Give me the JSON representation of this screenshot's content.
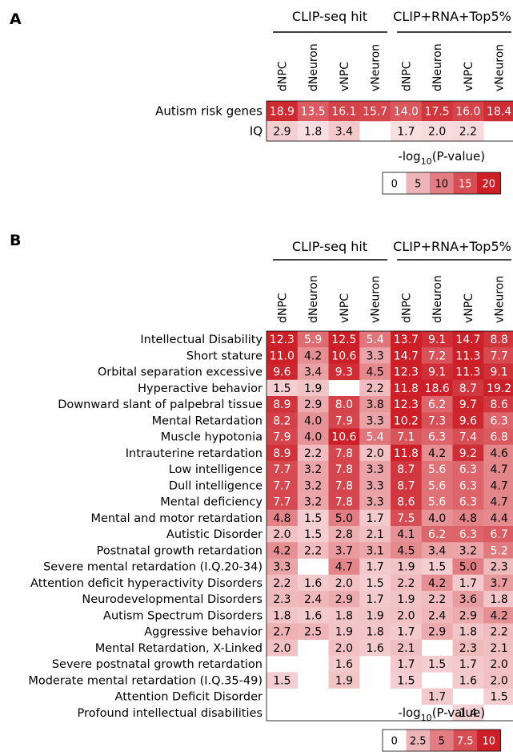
{
  "panel_a": {
    "letter": "A",
    "group_labels": [
      "CLIP-seq hit",
      "CLIP+RNA+Top5%"
    ],
    "columns": [
      "dNPC",
      "dNeuron",
      "vNPC",
      "vNeuron",
      "dNPC",
      "dNeuron",
      "vNPC",
      "vNeuron"
    ],
    "legend_title": "-log10(P-value)",
    "legend_ticks": [
      "0",
      "5",
      "10",
      "15",
      "20"
    ],
    "legend_max": 20
  },
  "panel_b": {
    "letter": "B",
    "group_labels": [
      "CLIP-seq hit",
      "CLIP+RNA+Top5%"
    ],
    "columns": [
      "dNPC",
      "dNeuron",
      "vNPC",
      "vNeuron",
      "dNPC",
      "dNeuron",
      "vNPC",
      "vNeuron"
    ],
    "legend_title": "-log10(P-value)",
    "legend_ticks": [
      "0",
      "2.5",
      "5",
      "7.5",
      "10"
    ],
    "legend_max": 10
  },
  "colors": {
    "low": "#ffffff",
    "high": "#cc1f27",
    "text_light": "#ffffff",
    "text_dark": "#000000"
  },
  "chart_data": [
    {
      "type": "heatmap",
      "rows": [
        "Autism risk genes",
        "IQ"
      ],
      "columns": [
        "dNPC",
        "dNeuron",
        "vNPC",
        "vNeuron",
        "dNPC",
        "dNeuron",
        "vNPC",
        "vNeuron"
      ],
      "column_groups": [
        {
          "name": "CLIP-seq hit",
          "columns": [
            0,
            1,
            2,
            3
          ]
        },
        {
          "name": "CLIP+RNA+Top5%",
          "columns": [
            4,
            5,
            6,
            7
          ]
        }
      ],
      "values": [
        [
          18.9,
          13.5,
          16.1,
          15.7,
          14.0,
          17.5,
          16.0,
          18.4
        ],
        [
          2.9,
          1.8,
          3.4,
          null,
          1.7,
          2.0,
          2.2,
          null
        ]
      ],
      "color_scale": {
        "min": 0,
        "max": 20,
        "title": "-log10(P-value)"
      }
    },
    {
      "type": "heatmap",
      "rows": [
        "Intellectual Disability",
        "Short stature",
        "Orbital separation excessive",
        "Hyperactive behavior",
        "Downward slant of palpebral tissue",
        "Mental Retardation",
        "Muscle hypotonia",
        "Intrauterine retardation",
        "Low intelligence",
        "Dull intelligence",
        "Mental deficiency",
        "Mental and motor retardation",
        "Autistic Disorder",
        "Postnatal growth retardation",
        "Severe mental retardation (I.Q.20-34)",
        "Attention deficit hyperactivity Disorders",
        "Neurodevelopmental Disorders",
        "Autism Spectrum Disorders",
        "Aggressive behavior",
        "Mental Retardation, X-Linked",
        "Severe postnatal growth retardation",
        "Moderate mental retardation (I.Q.35-49)",
        "Attention Deficit Disorder",
        "Profound intellectual disabilities"
      ],
      "columns": [
        "dNPC",
        "dNeuron",
        "vNPC",
        "vNeuron",
        "dNPC",
        "dNeuron",
        "vNPC",
        "vNeuron"
      ],
      "column_groups": [
        {
          "name": "CLIP-seq hit",
          "columns": [
            0,
            1,
            2,
            3
          ]
        },
        {
          "name": "CLIP+RNA+Top5%",
          "columns": [
            4,
            5,
            6,
            7
          ]
        }
      ],
      "values": [
        [
          12.3,
          5.9,
          12.5,
          5.4,
          13.7,
          9.1,
          14.7,
          8.8
        ],
        [
          11.0,
          4.2,
          10.6,
          3.3,
          14.7,
          7.2,
          11.3,
          7.7
        ],
        [
          9.6,
          3.4,
          9.3,
          4.5,
          12.3,
          9.1,
          11.3,
          9.1
        ],
        [
          1.5,
          1.9,
          null,
          2.2,
          11.8,
          18.6,
          8.7,
          19.2
        ],
        [
          8.9,
          2.9,
          8.0,
          3.8,
          12.3,
          6.2,
          9.7,
          8.6
        ],
        [
          8.2,
          4.0,
          7.9,
          3.3,
          10.2,
          7.3,
          9.6,
          6.3
        ],
        [
          7.9,
          4.0,
          10.6,
          5.4,
          7.1,
          6.3,
          7.4,
          6.8
        ],
        [
          8.9,
          2.2,
          7.8,
          2.0,
          11.8,
          4.2,
          9.2,
          4.6
        ],
        [
          7.7,
          3.2,
          7.8,
          3.3,
          8.7,
          5.6,
          6.3,
          4.7
        ],
        [
          7.7,
          3.2,
          7.8,
          3.3,
          8.7,
          5.6,
          6.3,
          4.7
        ],
        [
          7.7,
          3.2,
          7.8,
          3.3,
          8.6,
          5.6,
          6.3,
          4.7
        ],
        [
          4.8,
          1.5,
          5.0,
          1.7,
          7.5,
          4.0,
          4.8,
          4.4
        ],
        [
          2.0,
          1.5,
          2.8,
          2.1,
          4.1,
          6.2,
          6.3,
          6.7
        ],
        [
          4.2,
          2.2,
          3.7,
          3.1,
          4.5,
          3.4,
          3.2,
          5.2
        ],
        [
          3.3,
          null,
          4.7,
          1.7,
          1.9,
          1.5,
          5.0,
          2.3
        ],
        [
          2.2,
          1.6,
          2.0,
          1.5,
          2.2,
          4.2,
          1.7,
          3.7
        ],
        [
          2.3,
          2.4,
          2.9,
          1.7,
          1.9,
          2.2,
          3.6,
          1.8
        ],
        [
          1.8,
          1.6,
          1.8,
          1.9,
          2.0,
          2.4,
          2.9,
          4.2
        ],
        [
          2.7,
          2.5,
          1.9,
          1.8,
          1.7,
          2.9,
          1.8,
          2.2
        ],
        [
          2.0,
          null,
          2.0,
          1.6,
          2.1,
          null,
          2.3,
          2.1
        ],
        [
          null,
          null,
          1.6,
          null,
          1.7,
          1.5,
          1.7,
          2.0
        ],
        [
          1.5,
          null,
          1.9,
          null,
          1.5,
          null,
          1.6,
          2.0
        ],
        [
          null,
          null,
          null,
          null,
          null,
          1.7,
          null,
          1.5
        ],
        [
          null,
          null,
          null,
          null,
          null,
          null,
          1.4,
          null
        ]
      ],
      "color_scale": {
        "min": 0,
        "max": 10,
        "title": "-log10(P-value)"
      }
    }
  ]
}
